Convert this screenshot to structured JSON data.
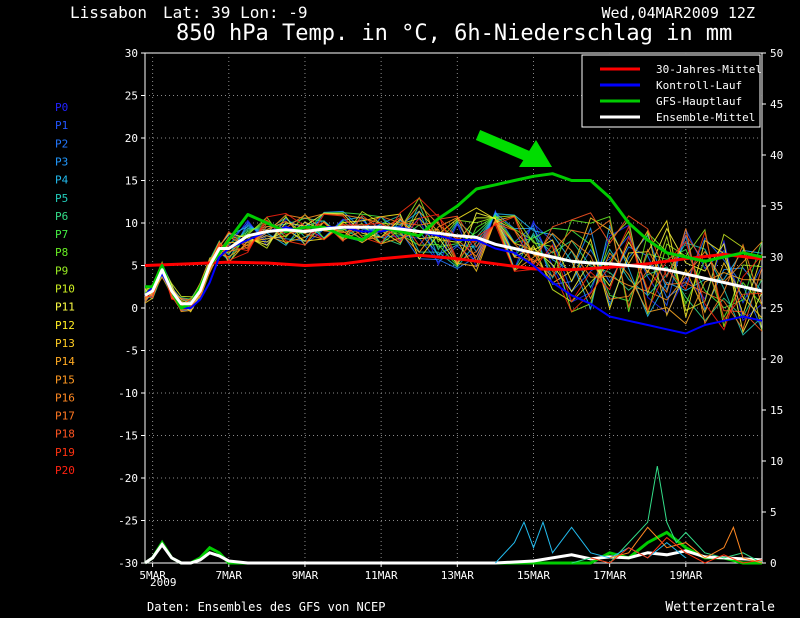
{
  "header": {
    "location": "Lissabon",
    "coords": "Lat: 39 Lon: -9",
    "date": "Wed,04MAR2009 12Z",
    "title": "850 hPa Temp. in °C, 6h-Niederschlag in mm"
  },
  "footer": {
    "source": "Daten: Ensembles des GFS von NCEP",
    "brand": "Wetterzentrale"
  },
  "colors": {
    "background": "#000000",
    "grid": "#8a8a8a",
    "climate": "#ff0000",
    "control": "#0000ff",
    "gfs_main": "#00cc00",
    "ensemble_mean": "#ffffff",
    "arrow": "#00dd00"
  },
  "member_labels": [
    "P0",
    "P1",
    "P2",
    "P3",
    "P4",
    "P5",
    "P6",
    "P7",
    "P8",
    "P9",
    "P10",
    "P11",
    "P12",
    "P13",
    "P14",
    "P15",
    "P16",
    "P17",
    "P18",
    "P19",
    "P20"
  ],
  "member_colors": [
    "#2222ff",
    "#2255ff",
    "#2277ff",
    "#2299ff",
    "#22bbee",
    "#22ccbb",
    "#33dd88",
    "#44ee44",
    "#66ee22",
    "#99ee22",
    "#ccee22",
    "#ffff44",
    "#ffee22",
    "#ffcc22",
    "#ffaa22",
    "#ff9922",
    "#ff8822",
    "#ff7722",
    "#ff5522",
    "#ff3311",
    "#ff2211"
  ],
  "chart_data": {
    "type": "line",
    "x_ticks": [
      "5MAR",
      "7MAR",
      "9MAR",
      "11MAR",
      "13MAR",
      "15MAR",
      "17MAR",
      "19MAR"
    ],
    "x_year_label": "2009",
    "x_range_days": [
      4.8,
      21.0
    ],
    "y_left_range": [
      -30,
      30
    ],
    "y_left_ticks": [
      30,
      25,
      20,
      15,
      10,
      5,
      0,
      -5,
      -10,
      -15,
      -20,
      -25,
      -30
    ],
    "y_right_range": [
      0,
      50
    ],
    "y_right_ticks": [
      50,
      45,
      40,
      35,
      30,
      25,
      20,
      15,
      10,
      5,
      0
    ],
    "grid": true,
    "legend_position": "top-right",
    "legend": [
      "30-Jahres-Mittel",
      "Kontroll-Lauf",
      "GFS-Hauptlauf",
      "Ensemble-Mittel"
    ],
    "temperature_series": [
      {
        "name": "30-Jahres-Mittel",
        "role": "climate",
        "x": [
          4.8,
          6,
          7,
          8,
          9,
          10,
          11,
          12,
          13,
          14,
          15,
          16,
          17,
          18,
          19,
          20,
          21
        ],
        "y": [
          5.0,
          5.2,
          5.4,
          5.3,
          5.0,
          5.2,
          5.8,
          6.2,
          5.8,
          5.2,
          4.6,
          4.5,
          4.8,
          5.2,
          5.8,
          6.3,
          5.8
        ]
      },
      {
        "name": "Kontroll-Lauf",
        "role": "control",
        "x": [
          4.8,
          5.0,
          5.25,
          5.5,
          5.75,
          6.0,
          6.25,
          6.5,
          6.75,
          7.0,
          7.5,
          8.0,
          8.5,
          9.0,
          9.5,
          10.0,
          10.5,
          11.0,
          11.5,
          12.0,
          12.5,
          13.0,
          13.5,
          14.0,
          14.5,
          15.0,
          15.5,
          16.0,
          16.5,
          17.0,
          17.5,
          18.0,
          18.5,
          19.0,
          19.5,
          20.0,
          20.5,
          21.0
        ],
        "y": [
          1.5,
          2.5,
          4.0,
          2.0,
          0.0,
          0.0,
          1.0,
          3.0,
          6.0,
          7.0,
          8.0,
          9.0,
          9.5,
          9.0,
          9.5,
          9.5,
          9.0,
          9.0,
          9.5,
          9.0,
          8.5,
          8.0,
          8.0,
          7.0,
          6.5,
          5.0,
          3.0,
          1.5,
          0.5,
          -1.0,
          -1.5,
          -2.0,
          -2.5,
          -3.0,
          -2.0,
          -1.5,
          -1.0,
          -1.5
        ]
      },
      {
        "name": "GFS-Hauptlauf",
        "role": "gfs",
        "x": [
          4.8,
          5.0,
          5.25,
          5.5,
          5.75,
          6.0,
          6.25,
          6.5,
          6.75,
          7.0,
          7.5,
          8.0,
          8.5,
          9.0,
          9.5,
          10.0,
          10.5,
          11.0,
          11.5,
          12.0,
          12.5,
          13.0,
          13.5,
          14.0,
          14.5,
          15.0,
          15.5,
          16.0,
          16.5,
          17.0,
          17.5,
          18.0,
          18.5,
          19.0,
          19.5,
          20.0,
          20.5,
          21.0
        ],
        "y": [
          2.5,
          2.5,
          5.0,
          2.0,
          0.0,
          0.5,
          2.5,
          5.0,
          6.5,
          8.0,
          11.0,
          10.0,
          9.0,
          9.5,
          9.5,
          8.5,
          8.0,
          9.5,
          9.0,
          8.5,
          10.5,
          12.0,
          14.0,
          14.5,
          15.0,
          15.5,
          15.8,
          15.0,
          15.0,
          13.0,
          10.0,
          8.0,
          6.5,
          6.0,
          5.5,
          6.0,
          6.5,
          6.0
        ]
      },
      {
        "name": "Ensemble-Mittel",
        "role": "mean",
        "x": [
          4.8,
          5.0,
          5.25,
          5.5,
          5.75,
          6.0,
          6.25,
          6.5,
          6.75,
          7.0,
          7.5,
          8.0,
          8.5,
          9.0,
          9.5,
          10.0,
          10.5,
          11.0,
          11.5,
          12.0,
          12.5,
          13.0,
          13.5,
          14.0,
          14.5,
          15.0,
          15.5,
          16.0,
          16.5,
          17.0,
          17.5,
          18.0,
          18.5,
          19.0,
          19.5,
          20.0,
          20.5,
          21.0
        ],
        "y": [
          1.5,
          2.0,
          4.5,
          2.0,
          0.5,
          0.5,
          2.0,
          5.0,
          7.0,
          7.0,
          8.5,
          9.0,
          9.2,
          9.0,
          9.3,
          9.5,
          9.5,
          9.5,
          9.3,
          9.0,
          8.8,
          8.5,
          8.3,
          7.5,
          7.0,
          6.5,
          6.0,
          5.5,
          5.3,
          5.2,
          5.0,
          4.8,
          4.5,
          4.0,
          3.5,
          3.0,
          2.5,
          2.0
        ]
      }
    ],
    "precip_series": [
      {
        "name": "GFS-Hauptlauf",
        "role": "gfs",
        "x": [
          4.8,
          5.0,
          5.25,
          5.5,
          5.75,
          6.0,
          6.25,
          6.5,
          6.75,
          7.0,
          7.5,
          8.0,
          11.5,
          12.0,
          12.5,
          13.0,
          14.0,
          15.0,
          15.5,
          16.0,
          16.5,
          17.0,
          17.5,
          18.0,
          18.5,
          19.0,
          19.5,
          20.0,
          20.5,
          21.0
        ],
        "y": [
          0.0,
          0.5,
          2.0,
          0.5,
          0.0,
          0.0,
          0.5,
          1.5,
          1.0,
          0.0,
          0.0,
          0.0,
          0.0,
          0.0,
          0.0,
          0.0,
          0.0,
          0.0,
          0.0,
          0.0,
          0.0,
          1.0,
          0.5,
          2.0,
          3.0,
          1.5,
          0.5,
          0.5,
          0.0,
          0.0
        ]
      },
      {
        "name": "Ensemble-Mittel",
        "role": "mean",
        "x": [
          4.8,
          5.0,
          5.25,
          5.5,
          5.75,
          6.0,
          6.25,
          6.5,
          6.75,
          7.0,
          7.5,
          8.0,
          12.0,
          13.0,
          14.0,
          15.0,
          15.5,
          16.0,
          16.5,
          17.0,
          17.5,
          18.0,
          18.5,
          19.0,
          19.5,
          20.0,
          20.5,
          21.0
        ],
        "y": [
          0.0,
          0.5,
          1.8,
          0.5,
          0.0,
          0.0,
          0.3,
          1.0,
          0.7,
          0.2,
          0.0,
          0.0,
          0.0,
          0.0,
          0.0,
          0.2,
          0.5,
          0.8,
          0.4,
          0.6,
          0.5,
          1.0,
          0.8,
          1.2,
          0.6,
          0.5,
          0.4,
          0.3
        ]
      },
      {
        "name": "P8",
        "role": "member",
        "x": [
          16.0,
          16.5,
          17.0,
          17.5,
          18.0,
          18.25,
          18.5,
          18.75,
          19.0,
          19.5,
          20.0,
          20.5,
          21.0
        ],
        "y": [
          0.0,
          0.5,
          0.0,
          2.0,
          4.0,
          9.5,
          4.0,
          2.0,
          3.0,
          1.0,
          0.5,
          1.0,
          0.0
        ]
      },
      {
        "name": "P4",
        "role": "member",
        "x": [
          14.0,
          14.5,
          14.75,
          15.0,
          15.25,
          15.5,
          16.0,
          16.5,
          17.0,
          17.5,
          18.0,
          18.5,
          19.0
        ],
        "y": [
          0.0,
          2.0,
          4.0,
          1.5,
          4.0,
          1.0,
          3.5,
          1.0,
          0.5,
          1.5,
          0.5,
          2.0,
          0.5
        ]
      },
      {
        "name": "P16",
        "role": "member",
        "x": [
          17.0,
          17.5,
          18.0,
          18.5,
          19.0,
          19.5,
          20.0,
          20.25,
          20.5,
          21.0
        ],
        "y": [
          0.5,
          1.0,
          3.5,
          1.5,
          2.0,
          0.5,
          1.5,
          3.5,
          0.5,
          0.0
        ]
      },
      {
        "name": "P19",
        "role": "member",
        "x": [
          16.5,
          17.0,
          17.5,
          18.0,
          18.5,
          19.0,
          19.5,
          20.0,
          20.5,
          21.0
        ],
        "y": [
          0.5,
          0.0,
          1.5,
          0.5,
          2.5,
          1.0,
          0.0,
          0.8,
          0.0,
          0.3
        ]
      }
    ]
  }
}
